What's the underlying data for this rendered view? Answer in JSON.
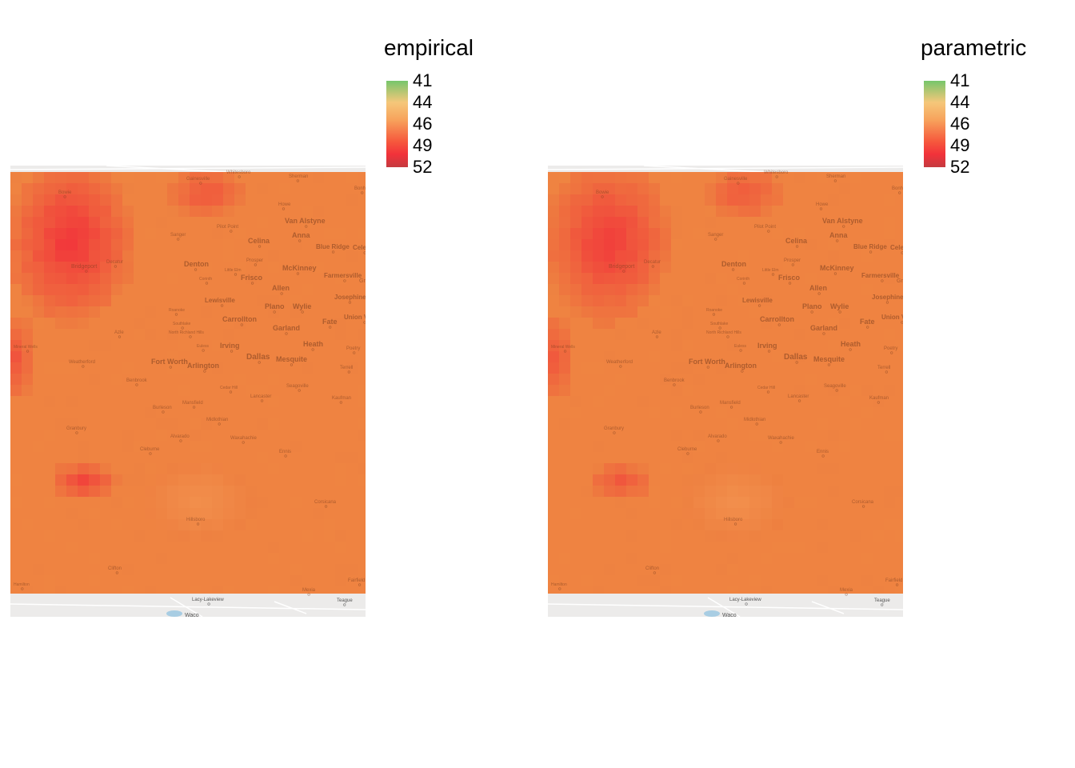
{
  "panels": [
    {
      "legend_title": "empirical",
      "legend_ticks": [
        "41",
        "44",
        "46",
        "49",
        "52"
      ],
      "hotspot_level": 1.0,
      "south_hotspot_level": 0.8
    },
    {
      "legend_title": "parametric",
      "legend_ticks": [
        "41",
        "44",
        "46",
        "49",
        "52"
      ],
      "hotspot_level": 0.9,
      "south_hotspot_level": 0.55
    }
  ],
  "colors": {
    "low": "#76c66b",
    "mid_low": "#f5c77a",
    "mid": "#f7a35c",
    "high": "#f2323a",
    "max": "#c43a3f",
    "base_tile": "#ee8040",
    "basemap": "#ecebea"
  },
  "towns": [
    {
      "name": "Whitesboro"
    },
    {
      "name": "Sherman"
    },
    {
      "name": "Bonham"
    },
    {
      "name": "Bowie"
    },
    {
      "name": "Gainesville"
    },
    {
      "name": "Howe"
    },
    {
      "name": "Van Alstyne"
    },
    {
      "name": "Sanger"
    },
    {
      "name": "Pilot Point"
    },
    {
      "name": "Celina"
    },
    {
      "name": "Anna"
    },
    {
      "name": "Blue Ridge"
    },
    {
      "name": "Celeste"
    },
    {
      "name": "Decatur"
    },
    {
      "name": "Bridgeport"
    },
    {
      "name": "Denton"
    },
    {
      "name": "Prosper"
    },
    {
      "name": "McKinney"
    },
    {
      "name": "Farmersville"
    },
    {
      "name": "Corinth"
    },
    {
      "name": "Little Elm"
    },
    {
      "name": "Frisco"
    },
    {
      "name": "Allen"
    },
    {
      "name": "Lewisville"
    },
    {
      "name": "Josephine"
    },
    {
      "name": "Plano"
    },
    {
      "name": "Wylie"
    },
    {
      "name": "Roanoke"
    },
    {
      "name": "Carrollton"
    },
    {
      "name": "Southlake"
    },
    {
      "name": "Fate"
    },
    {
      "name": "Union Valley"
    },
    {
      "name": "Azle"
    },
    {
      "name": "North Richland Hills"
    },
    {
      "name": "Garland"
    },
    {
      "name": "Euless"
    },
    {
      "name": "Irving"
    },
    {
      "name": "Heath"
    },
    {
      "name": "Poetry"
    },
    {
      "name": "Mineral Wells"
    },
    {
      "name": "Weatherford"
    },
    {
      "name": "Dallas"
    },
    {
      "name": "Fort Worth"
    },
    {
      "name": "Arlington"
    },
    {
      "name": "Mesquite"
    },
    {
      "name": "Terrell"
    },
    {
      "name": "Benbrook"
    },
    {
      "name": "Cedar Hill"
    },
    {
      "name": "Lancaster"
    },
    {
      "name": "Seagoville"
    },
    {
      "name": "Mansfield"
    },
    {
      "name": "Kaufman"
    },
    {
      "name": "Burleson"
    },
    {
      "name": "Midlothian"
    },
    {
      "name": "Granbury"
    },
    {
      "name": "Alvarado"
    },
    {
      "name": "Waxahachie"
    },
    {
      "name": "Cleburne"
    },
    {
      "name": "Ennis"
    },
    {
      "name": "Corsicana"
    },
    {
      "name": "Hillsboro"
    },
    {
      "name": "Clifton"
    },
    {
      "name": "Fairfield"
    },
    {
      "name": "Hamilton"
    },
    {
      "name": "Lacy-Lakeview"
    },
    {
      "name": "Mexia"
    },
    {
      "name": "Teague"
    },
    {
      "name": "Waco"
    },
    {
      "name": "Greenville"
    }
  ]
}
